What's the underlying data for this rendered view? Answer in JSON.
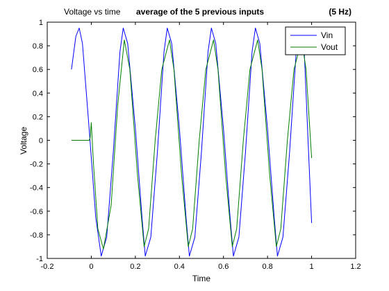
{
  "chart_data": {
    "type": "line",
    "title": "Voltage vs time",
    "subtitle": "average of the 5 previous inputs",
    "annotation": "(5 Hz)",
    "xlabel": "Time",
    "ylabel": "Voltage",
    "xlim": [
      -0.2,
      1.2
    ],
    "ylim": [
      -1,
      1
    ],
    "grid": false,
    "legend_position": "top-right",
    "x_ticks": [
      "-0.2",
      "0",
      "0.2",
      "0.4",
      "0.6",
      "0.8",
      "1",
      "1.2"
    ],
    "y_ticks": [
      "-1",
      "-0.8",
      "-0.6",
      "-0.4",
      "-0.2",
      "0",
      "0.2",
      "0.4",
      "0.6",
      "0.8",
      "1"
    ],
    "series": [
      {
        "name": "Vin",
        "color": "#0000ff",
        "x": [
          -0.09,
          -0.07,
          -0.055,
          -0.04,
          -0.01,
          0.02,
          0.045,
          0.07,
          0.1,
          0.13,
          0.145,
          0.165,
          0.2,
          0.23,
          0.245,
          0.27,
          0.3,
          0.33,
          0.345,
          0.365,
          0.4,
          0.43,
          0.445,
          0.47,
          0.5,
          0.53,
          0.545,
          0.565,
          0.6,
          0.63,
          0.645,
          0.67,
          0.7,
          0.73,
          0.745,
          0.765,
          0.8,
          0.83,
          0.845,
          0.87,
          0.9,
          0.93,
          0.945,
          0.965,
          1.0
        ],
        "y": [
          0.6,
          0.88,
          0.95,
          0.82,
          0.1,
          -0.65,
          -0.98,
          -0.82,
          -0.1,
          0.75,
          0.95,
          0.82,
          0.1,
          -0.65,
          -0.98,
          -0.82,
          -0.1,
          0.75,
          0.95,
          0.82,
          0.1,
          -0.65,
          -0.98,
          -0.82,
          -0.1,
          0.75,
          0.95,
          0.82,
          0.1,
          -0.65,
          -0.98,
          -0.82,
          -0.1,
          0.75,
          0.95,
          0.82,
          0.1,
          -0.65,
          -0.98,
          -0.82,
          -0.1,
          0.75,
          0.95,
          0.82,
          -0.7
        ]
      },
      {
        "name": "Vout",
        "color": "#007f00",
        "x": [
          -0.09,
          -0.01,
          -0.005,
          0.0,
          0.01,
          0.03,
          0.055,
          0.09,
          0.12,
          0.15,
          0.175,
          0.21,
          0.24,
          0.26,
          0.29,
          0.32,
          0.355,
          0.375,
          0.41,
          0.44,
          0.46,
          0.49,
          0.52,
          0.555,
          0.575,
          0.61,
          0.64,
          0.66,
          0.69,
          0.72,
          0.755,
          0.775,
          0.81,
          0.84,
          0.86,
          0.89,
          0.92,
          0.955,
          0.975,
          1.0
        ],
        "y": [
          0.0,
          0.0,
          0.02,
          0.15,
          -0.2,
          -0.75,
          -0.92,
          -0.55,
          0.3,
          0.85,
          0.6,
          -0.3,
          -0.9,
          -0.75,
          0.0,
          0.6,
          0.85,
          0.6,
          -0.3,
          -0.9,
          -0.75,
          0.0,
          0.6,
          0.85,
          0.6,
          -0.3,
          -0.9,
          -0.75,
          0.0,
          0.6,
          0.85,
          0.6,
          -0.3,
          -0.9,
          -0.75,
          0.0,
          0.6,
          0.85,
          0.6,
          -0.15
        ]
      }
    ]
  }
}
